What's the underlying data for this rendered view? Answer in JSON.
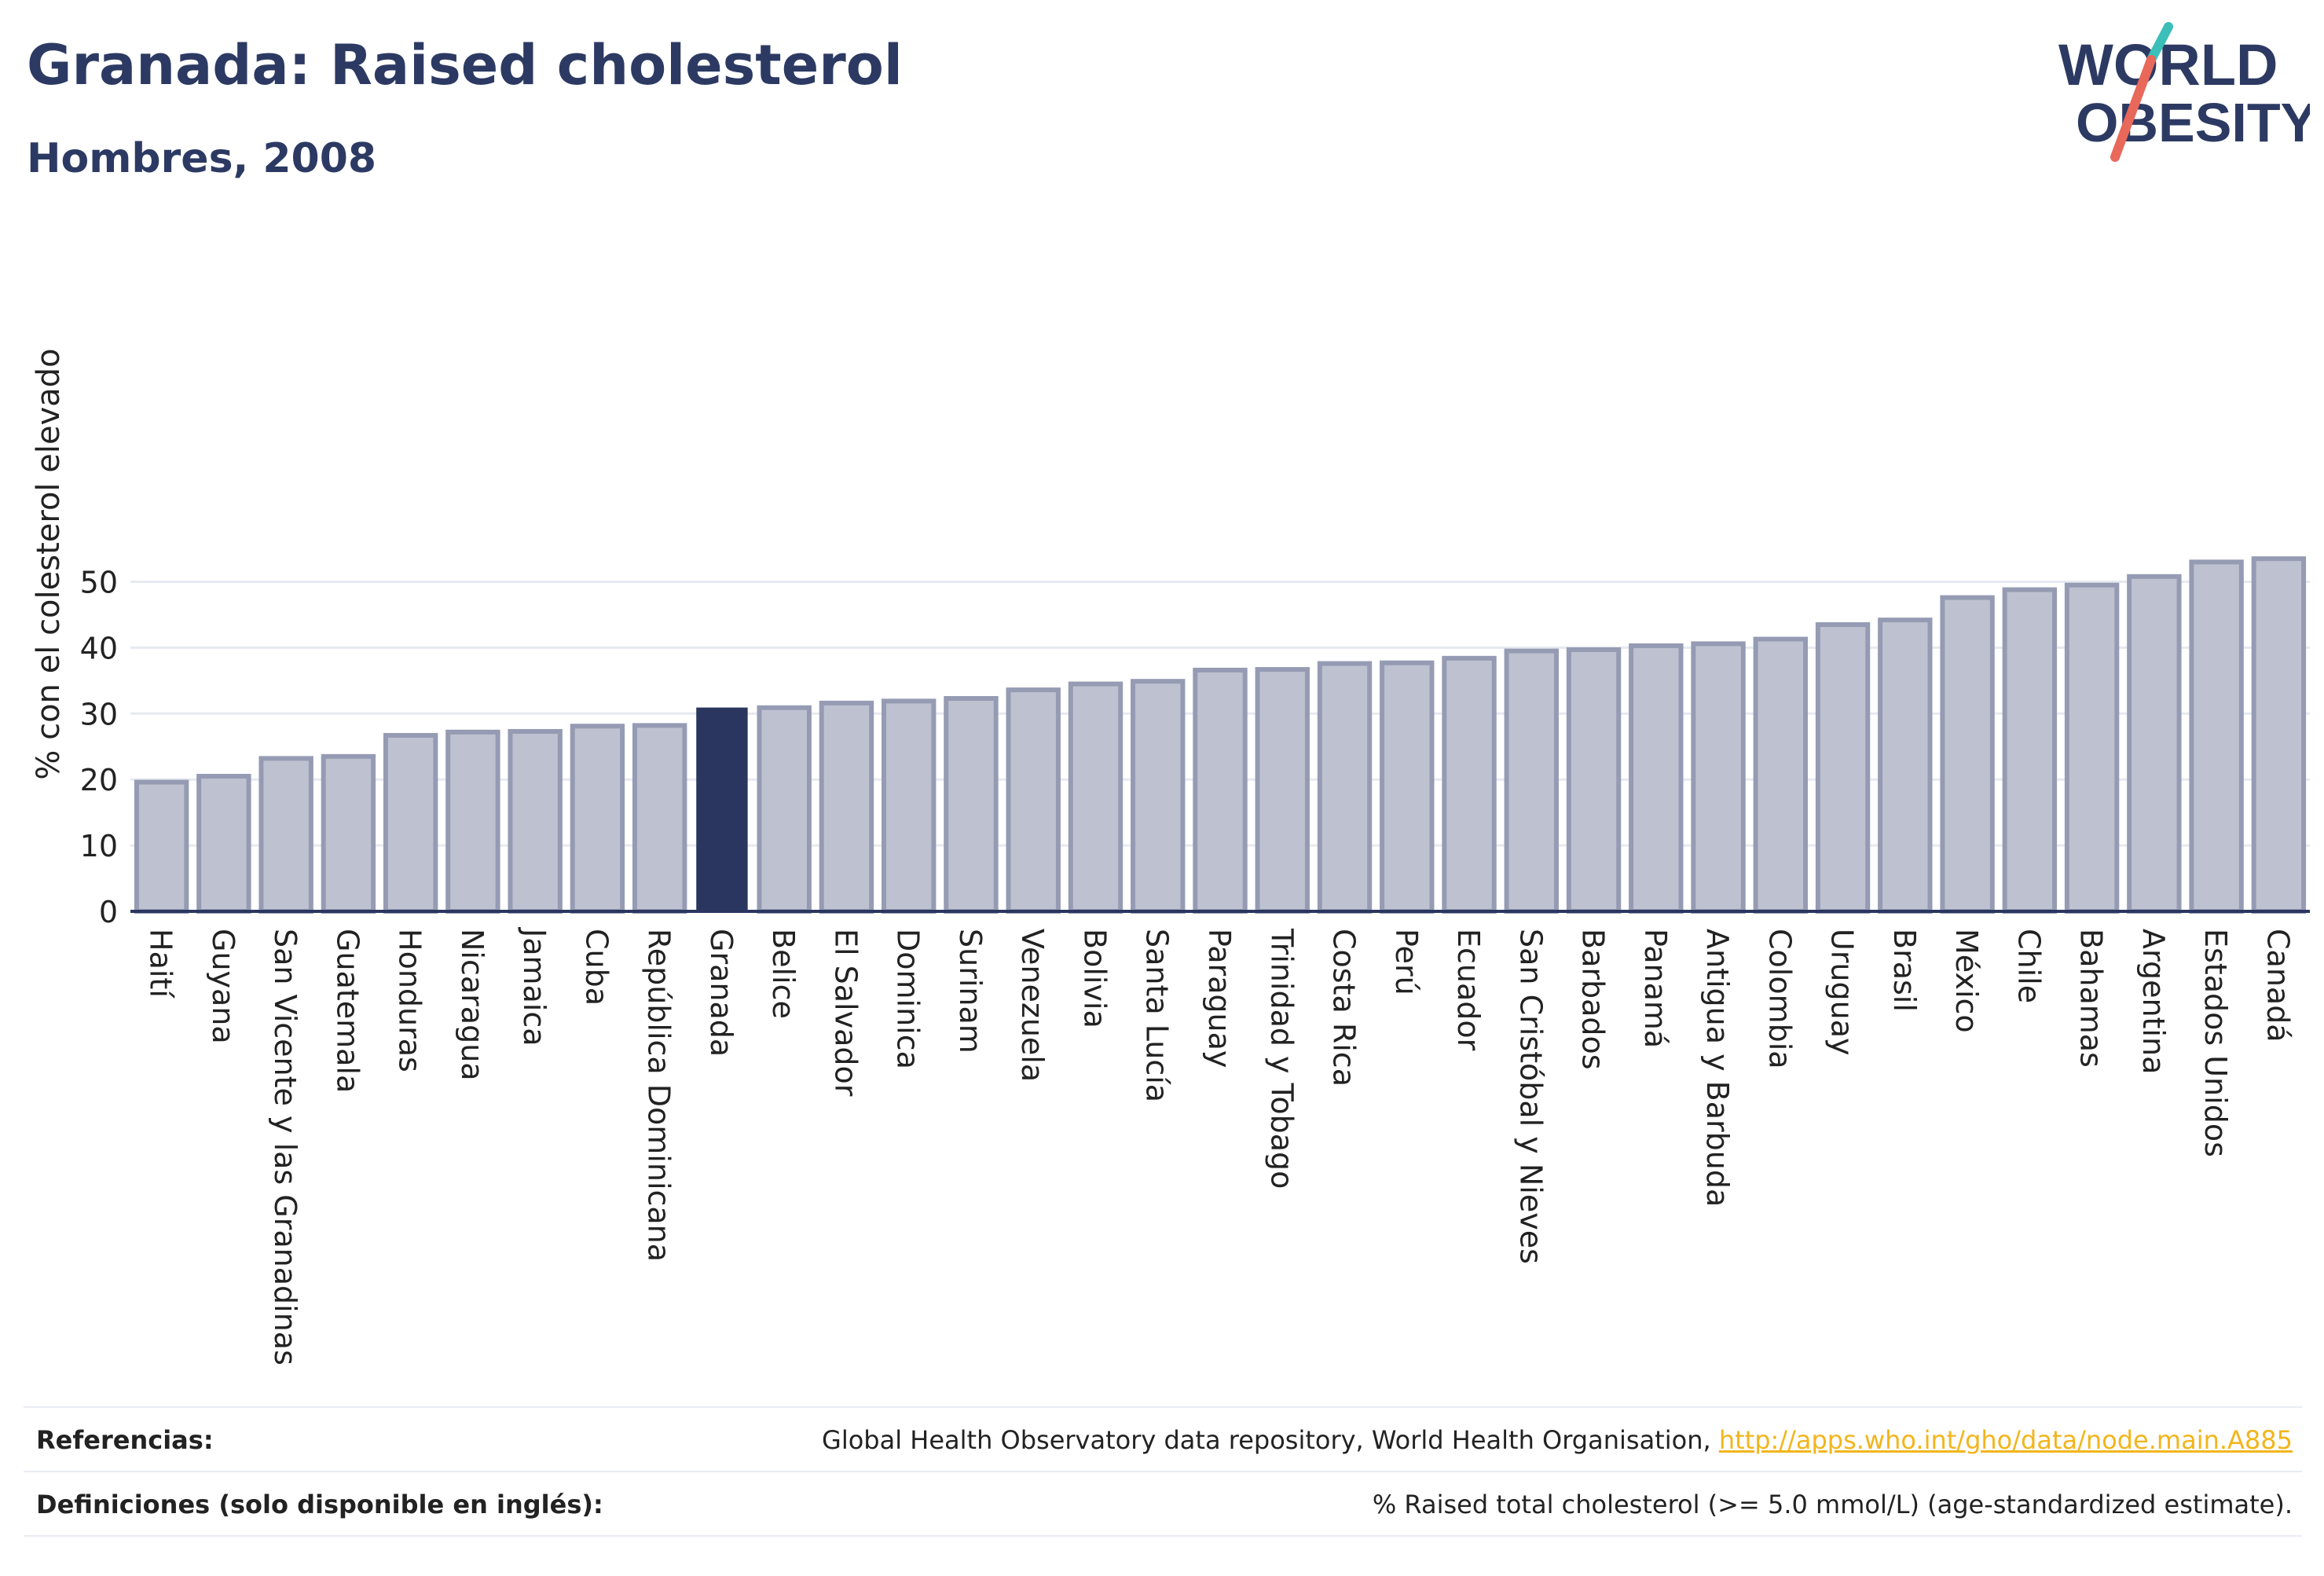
{
  "header": {
    "title": "Granada: Raised cholesterol",
    "subtitle": "Hombres, 2008"
  },
  "logo": {
    "line1": "WORLD",
    "line2": "OBESITY",
    "text_color": "#2c3a63",
    "slash_colors": [
      "#3bbfb8",
      "#e8685a"
    ]
  },
  "chart_data": {
    "type": "bar",
    "ylabel": "% con el colesterol elevado",
    "ylim": [
      0,
      55
    ],
    "yticks": [
      0,
      10,
      20,
      30,
      40,
      50
    ],
    "grid": true,
    "highlight": "Granada",
    "colors": {
      "bar": "#bec2d0",
      "bar_edge": "#959bb3",
      "highlight": "#2a365f",
      "grid": "#e6e9f0",
      "axis": "#2a365f"
    },
    "categories": [
      "Haití",
      "Guyana",
      "San Vicente y las Granadinas",
      "Guatemala",
      "Honduras",
      "Nicaragua",
      "Jamaica",
      "Cuba",
      "República Dominicana",
      "Granada",
      "Belice",
      "El Salvador",
      "Dominica",
      "Surinam",
      "Venezuela",
      "Bolivia",
      "Santa Lucía",
      "Paraguay",
      "Trinidad y Tobago",
      "Costa Rica",
      "Perú",
      "Ecuador",
      "San Cristóbal y Nieves",
      "Barbados",
      "Panamá",
      "Antigua y Barbuda",
      "Colombia",
      "Uruguay",
      "Brasil",
      "México",
      "Chile",
      "Bahamas",
      "Argentina",
      "Estados Unidos",
      "Canadá"
    ],
    "values": [
      19.6,
      20.5,
      23.2,
      23.5,
      26.7,
      27.2,
      27.3,
      28.1,
      28.2,
      30.8,
      30.9,
      31.6,
      31.9,
      32.3,
      33.6,
      34.5,
      34.9,
      36.6,
      36.7,
      37.6,
      37.7,
      38.4,
      39.5,
      39.7,
      40.3,
      40.6,
      41.3,
      43.5,
      44.2,
      47.6,
      48.8,
      49.5,
      50.8,
      53.0,
      53.5
    ]
  },
  "footer": {
    "references_label": "Referencias:",
    "references_text": "Global Health Observatory data repository, World Health Organisation, ",
    "references_link": "http://apps.who.int/gho/data/node.main.A885",
    "definitions_label": "Definiciones (solo disponible en inglés):",
    "definitions_text": "% Raised total cholesterol (>= 5.0 mmol/L) (age-standardized estimate)."
  }
}
